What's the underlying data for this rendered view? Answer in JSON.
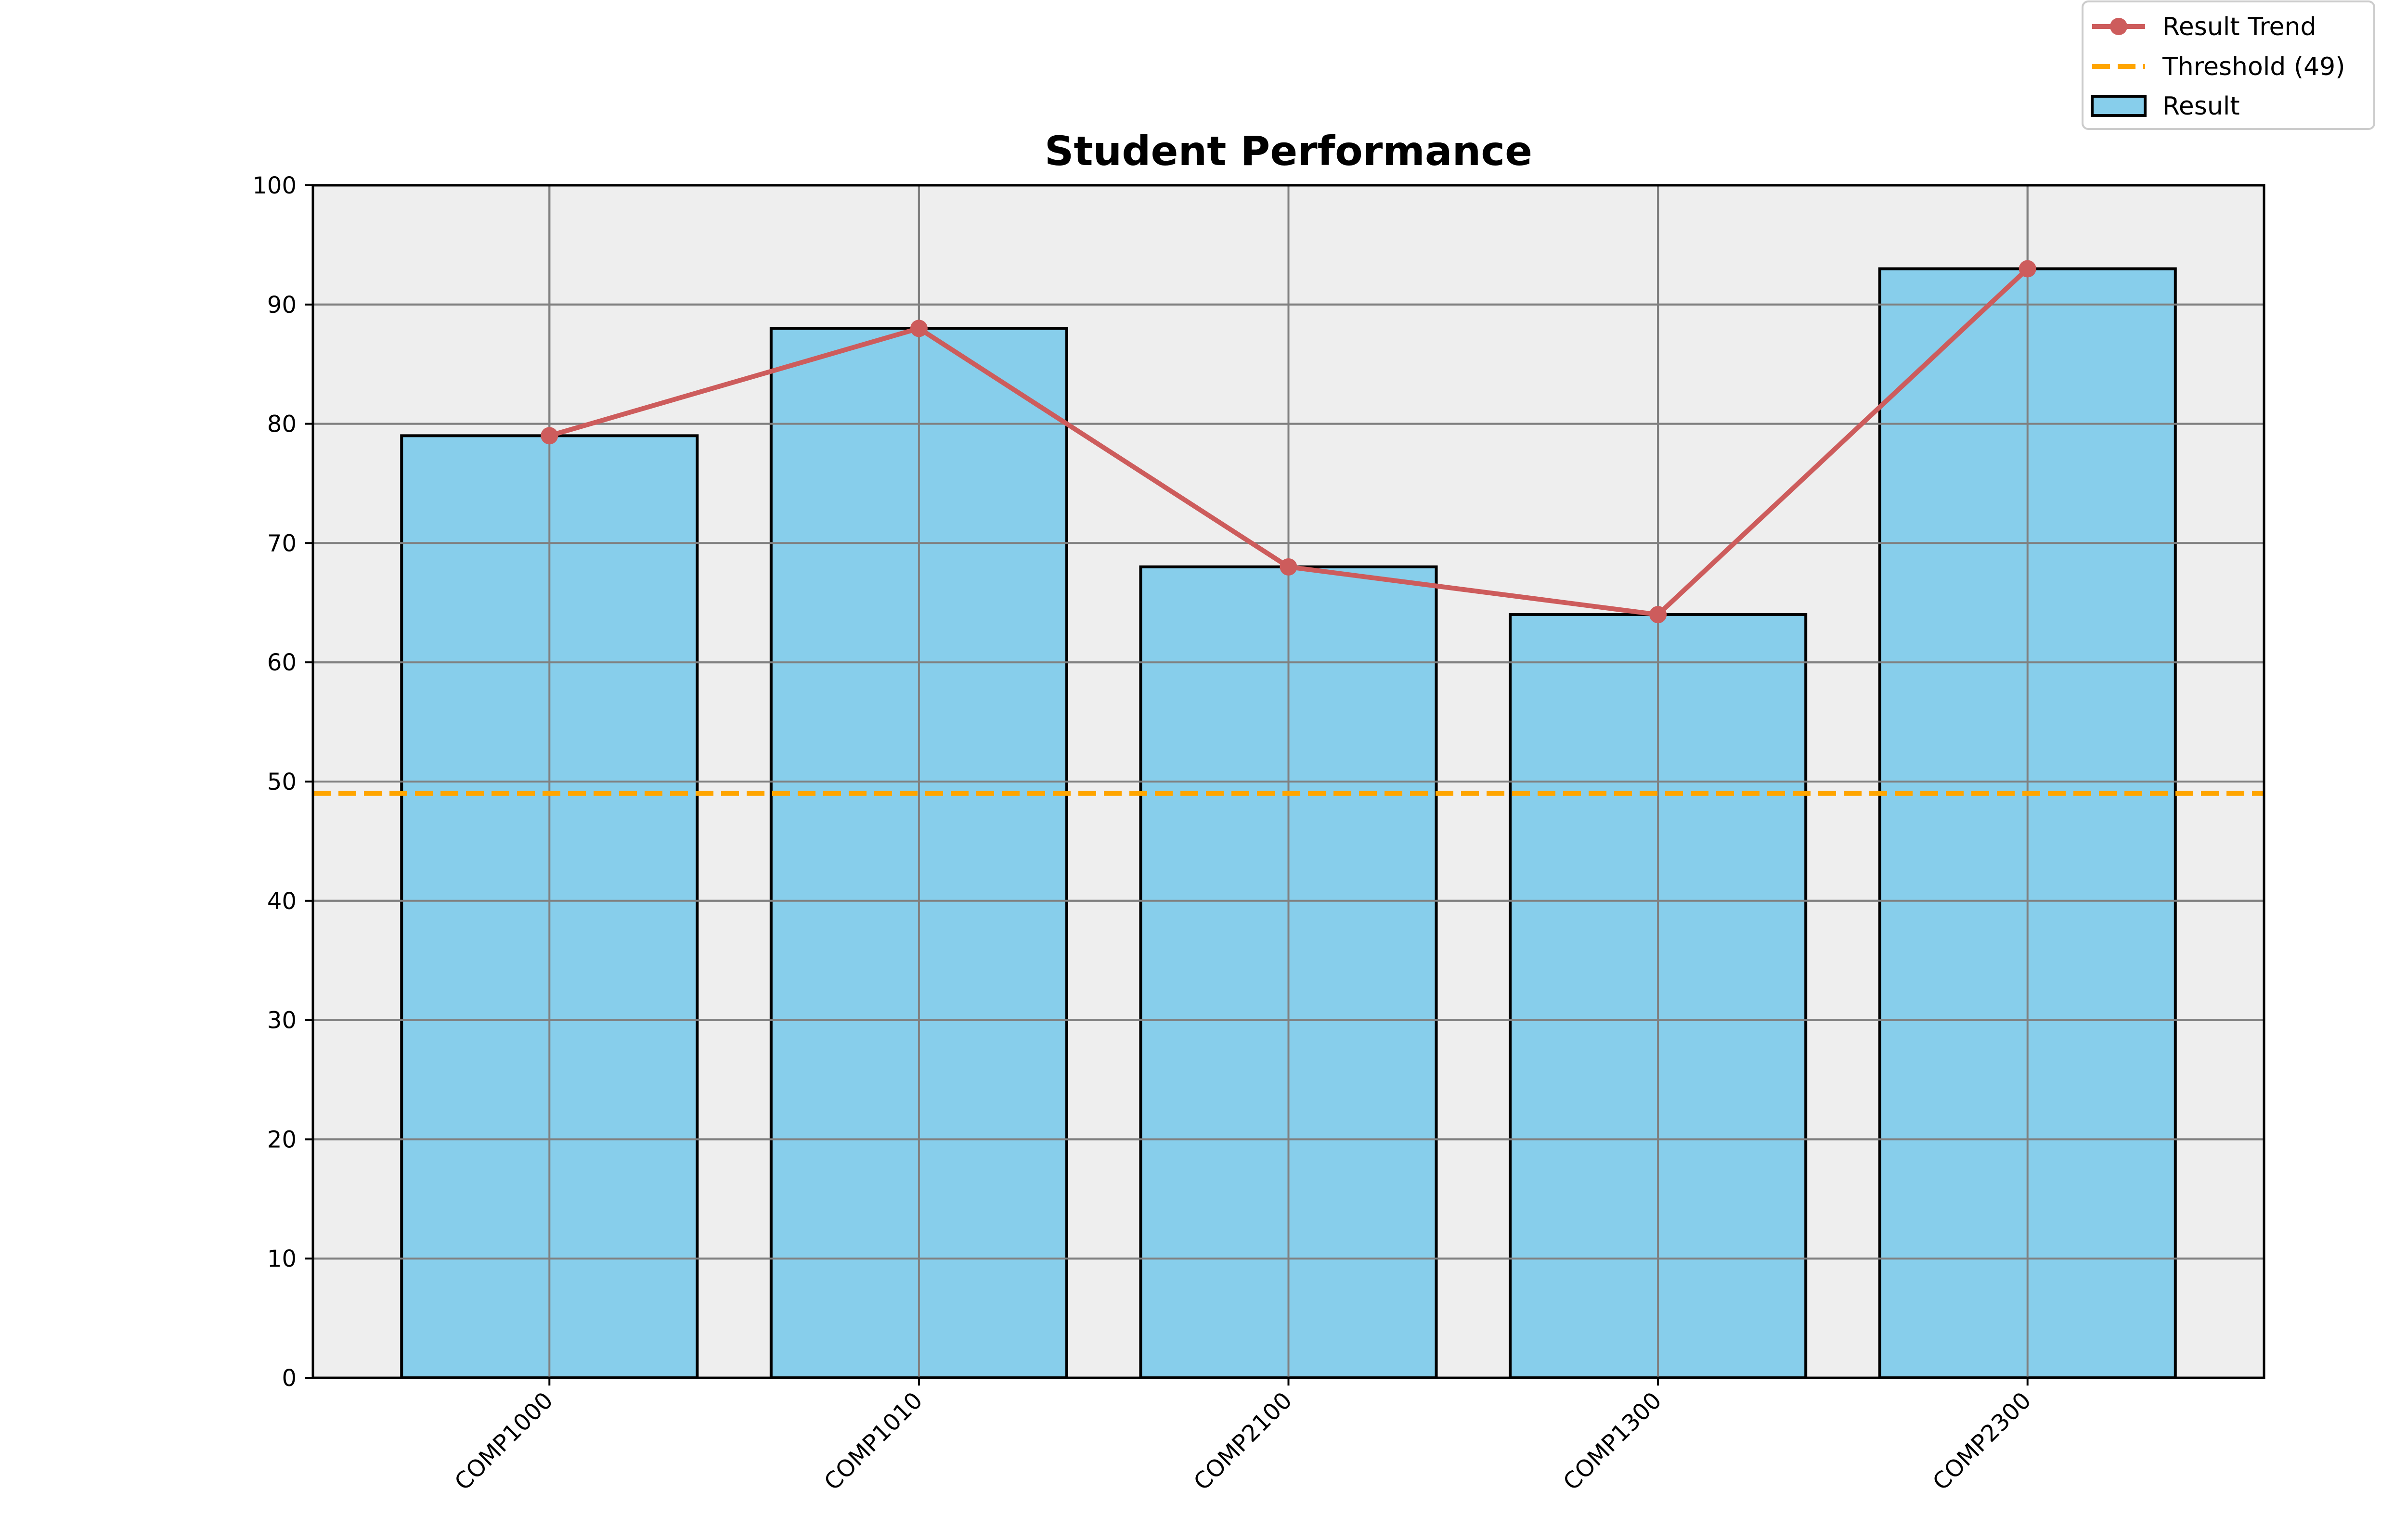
{
  "chart_data": {
    "type": "bar",
    "title": "Student Performance",
    "xlabel": "",
    "ylabel": "",
    "categories": [
      "COMP1000",
      "COMP1010",
      "COMP2100",
      "COMP1300",
      "COMP2300"
    ],
    "series": [
      {
        "name": "Result",
        "kind": "bar",
        "values": [
          79,
          88,
          68,
          64,
          93
        ],
        "color": "#87CEEB",
        "edge_color": "#000000"
      },
      {
        "name": "Result Trend",
        "kind": "line",
        "marker": "circle",
        "values": [
          79,
          88,
          68,
          64,
          93
        ],
        "color": "#CD5C5C"
      }
    ],
    "threshold": {
      "label": "Threshold (49)",
      "value": 49,
      "style": "dashed",
      "color": "#FFA500"
    },
    "ylim": [
      0,
      100
    ],
    "yticks": [
      0,
      10,
      20,
      30,
      40,
      50,
      60,
      70,
      80,
      90,
      100
    ],
    "grid": true,
    "plot_background": "#EEEEEE",
    "grid_color": "#808080",
    "legend": {
      "placement": "top-right",
      "entries": [
        "Result Trend",
        "Threshold (49)",
        "Result"
      ]
    },
    "x_tick_rotation": 45
  }
}
